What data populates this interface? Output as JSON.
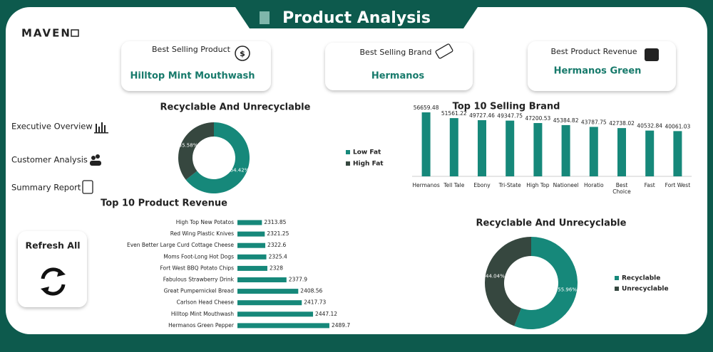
{
  "header": {
    "logo": "MAVEN",
    "title": "Product Analysis"
  },
  "kpis": [
    {
      "label": "Best Selling Product",
      "value": "Hilltop Mint Mouthwash"
    },
    {
      "label": "Best Selling Brand",
      "value": "Hermanos"
    },
    {
      "label": "Best Product Revenue",
      "value": "Hermanos Green"
    }
  ],
  "nav": [
    "Executive Overview",
    "Customer Analysis",
    "Summary Report"
  ],
  "refresh": "Refresh All",
  "chart_data": [
    {
      "type": "donut",
      "title": "Recyclable And Unrecyclable",
      "categories": [
        "Low Fat",
        "High Fat"
      ],
      "values": [
        64.42,
        35.58
      ],
      "value_labels": [
        "64.42%",
        "35.58%"
      ],
      "colors": [
        "#16887a",
        "#36473f"
      ]
    },
    {
      "type": "bar",
      "title": "Top 10 Selling Brand",
      "categories": [
        "Hermanos",
        "Tell Tale",
        "Ebony",
        "Tri-State",
        "High Top",
        "Nationeel",
        "Horatio",
        "Best Choice",
        "Fast",
        "Fort West"
      ],
      "values": [
        56659.48,
        51561.22,
        49727.46,
        49347.75,
        47200.53,
        45384.82,
        43787.75,
        42738.02,
        40532.84,
        40061.03
      ],
      "color": "#16887a"
    },
    {
      "type": "barh",
      "title": "Top 10 Product Revenue",
      "categories": [
        "High Top New Potatos",
        "Red Wing Plastic Knives",
        "Even Better Large Curd Cottage Cheese",
        "Moms Foot-Long Hot Dogs",
        "Fort West BBQ Potato Chips",
        "Fabulous Strawberry Drink",
        "Great Pumpernickel Bread",
        "Carlson Head Cheese",
        "Hilltop Mint Mouthwash",
        "Hermanos Green Pepper"
      ],
      "values": [
        2313.85,
        2321.25,
        2322.6,
        2325.4,
        2328,
        2377.9,
        2408.56,
        2417.73,
        2447.12,
        2489.7
      ],
      "xlim": [
        2250,
        2500
      ],
      "color": "#16887a"
    },
    {
      "type": "donut",
      "title": "Recyclable And Unrecyclable",
      "categories": [
        "Recyclable",
        "Unrecyclable"
      ],
      "values": [
        55.96,
        44.04
      ],
      "value_labels": [
        "55.96%",
        "44.04%"
      ],
      "colors": [
        "#16887a",
        "#36473f"
      ]
    }
  ]
}
